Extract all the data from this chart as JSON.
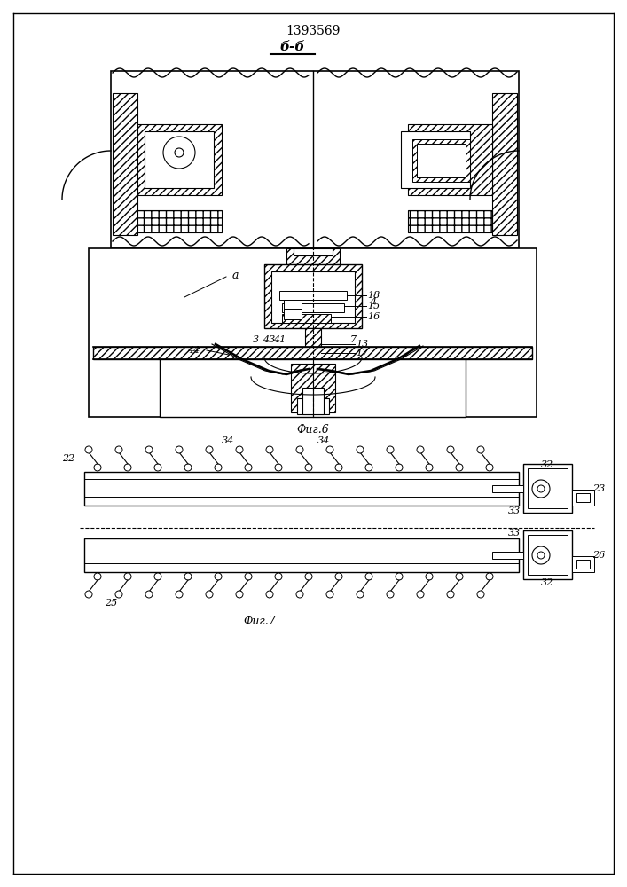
{
  "title": "1393569",
  "section_label": "б-б",
  "fig6_label": "Фиг.6",
  "fig7_label": "Фиг.7",
  "background": "#ffffff",
  "line_color": "#000000"
}
